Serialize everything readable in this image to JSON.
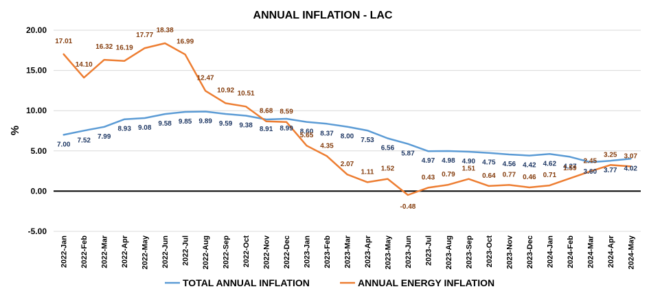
{
  "chart_data": {
    "type": "line",
    "title": "ANNUAL INFLATION  - LAC",
    "ylabel": "%",
    "xlabel": "",
    "ylim": [
      -5,
      20
    ],
    "yticks": [
      "-5.00",
      "0.00",
      "5.00",
      "10.00",
      "15.00",
      "20.00"
    ],
    "grid": "horizontal",
    "legend_position": "bottom",
    "categories": [
      "2022-Jan",
      "2022-Feb",
      "2022-Mar",
      "2022-Apr",
      "2022-May",
      "2022-Jun",
      "2022-Jul",
      "2022-Aug",
      "2022-Sep",
      "2022-Oct",
      "2022-Nov",
      "2022-Dec",
      "2023-Jan",
      "2023-Feb",
      "2023-Mar",
      "2023-Apr",
      "2023-May",
      "2023-Jun",
      "2023-Jul",
      "2023-Aug",
      "2023-Sep",
      "2023-Oct",
      "2023-Nov",
      "2023-Dec",
      "2024-Jan",
      "2024-Feb",
      "2024-Mar",
      "2024-Apr",
      "2024-May"
    ],
    "series": [
      {
        "name": "TOTAL ANNUAL INFLATION",
        "color": "#5b9bd5",
        "label_color": "#1f3864",
        "values": [
          7.0,
          7.52,
          7.99,
          8.93,
          9.08,
          9.58,
          9.85,
          9.89,
          9.59,
          9.38,
          8.91,
          8.99,
          8.6,
          8.37,
          8.0,
          7.53,
          6.56,
          5.87,
          4.97,
          4.98,
          4.9,
          4.75,
          4.56,
          4.42,
          4.62,
          4.27,
          3.6,
          3.77,
          4.02
        ],
        "labels": [
          "7.00",
          "7.52",
          "7.99",
          "8.93",
          "9.08",
          "9.58",
          "9.85",
          "9.89",
          "9.59",
          "9.38",
          "8.91",
          "8.99",
          "8.60",
          "8.37",
          "8.00",
          "7.53",
          "6.56",
          "5.87",
          "4.97",
          "4.98",
          "4.90",
          "4.75",
          "4.56",
          "4.42",
          "4.62",
          "4.27",
          "3.60",
          "3.77",
          "4.02"
        ]
      },
      {
        "name": "ANNUAL ENERGY INFLATION",
        "color": "#ed7d31",
        "label_color": "#843c0c",
        "values": [
          17.01,
          14.1,
          16.32,
          16.19,
          17.77,
          18.38,
          16.99,
          12.47,
          10.92,
          10.51,
          8.68,
          8.59,
          5.65,
          4.35,
          2.07,
          1.11,
          1.52,
          -0.48,
          0.43,
          0.79,
          1.51,
          0.64,
          0.77,
          0.46,
          0.71,
          1.59,
          2.45,
          3.25,
          3.07
        ],
        "labels": [
          "17.01",
          "14.10",
          "16.32",
          "16.19",
          "17.77",
          "18.38",
          "16.99",
          "12.47",
          "10.92",
          "10.51",
          "8.68",
          "8.59",
          "5.65",
          "4.35",
          "2.07",
          "1.11",
          "1.52",
          "-0.48",
          "0.43",
          "0.79",
          "1.51",
          "0.64",
          "0.77",
          "0.46",
          "0.71",
          "1.59",
          "2.45",
          "3.25",
          "3.07"
        ]
      }
    ]
  }
}
